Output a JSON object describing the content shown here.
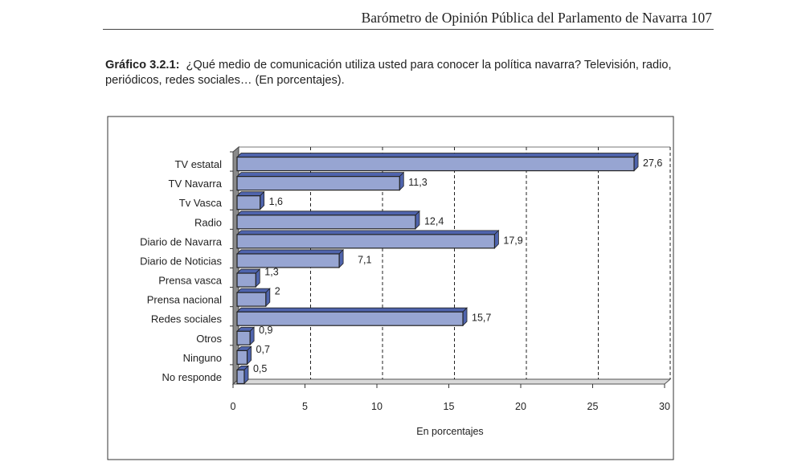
{
  "header": {
    "title": "Barómetro de Opinión Pública del Parlamento de Navarra 107"
  },
  "caption": {
    "label": "Gráfico 3.2.1:",
    "text": "¿Qué medio de comunicación utiliza usted para conocer la política navarra? Televisión, radio, periódicos, redes sociales… (En porcentajes)."
  },
  "chart_data": {
    "type": "bar",
    "orientation": "horizontal",
    "style": "3d",
    "categories": [
      "TV estatal",
      "TV Navarra",
      "Tv Vasca",
      "Radio",
      "Diario de Navarra",
      "Diario de Noticias",
      "Prensa vasca",
      "Prensa nacional",
      "Redes sociales",
      "Otros",
      "Ninguno",
      "No responde"
    ],
    "values": [
      27.6,
      11.3,
      1.6,
      12.4,
      17.9,
      7.1,
      1.3,
      2,
      15.7,
      0.9,
      0.7,
      0.5
    ],
    "value_labels": [
      "27,6",
      "11,3",
      "1,6",
      "12,4",
      "17,9",
      "7,1",
      "1,3",
      "2",
      "15,7",
      "0,9",
      "0,7",
      "0,5"
    ],
    "xlabel": "En porcentajes",
    "xlim": [
      0,
      30
    ],
    "xticks": [
      "0",
      "5",
      "10",
      "15",
      "20",
      "25",
      "30"
    ],
    "grid": "vertical dashed",
    "bar_color": "#97a5d2",
    "bar_side_color": "#4f64ad"
  }
}
